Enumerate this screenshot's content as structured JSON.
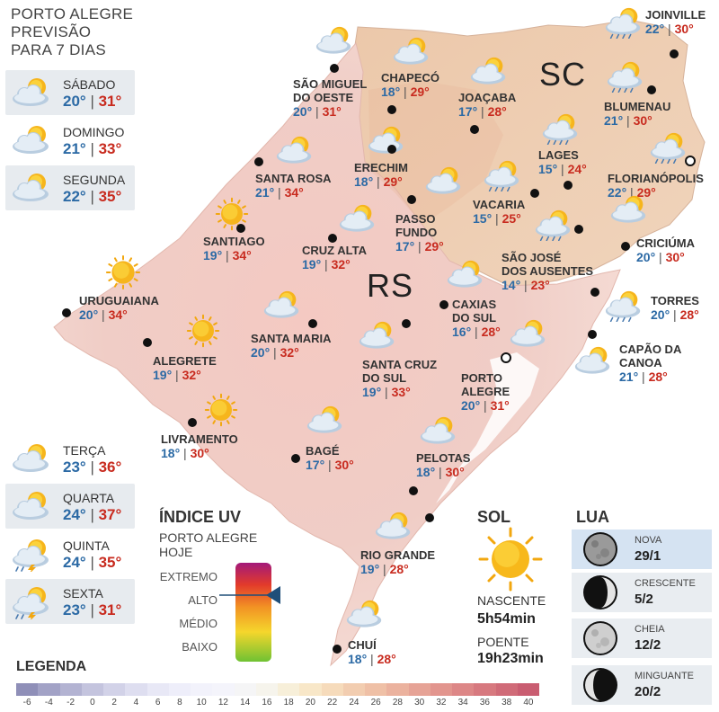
{
  "header": {
    "line1": "PORTO ALEGRE",
    "line2": "PREVISÃO",
    "line3": "PARA 7 DIAS"
  },
  "forecast": [
    {
      "day": "SÁBADO",
      "min": "20°",
      "max": "31°",
      "icon": "partly-cloudy-icon"
    },
    {
      "day": "DOMINGO",
      "min": "21°",
      "max": "33°",
      "icon": "partly-cloudy-icon"
    },
    {
      "day": "SEGUNDA",
      "min": "22°",
      "max": "35°",
      "icon": "partly-cloudy-icon"
    },
    {
      "day": "TERÇA",
      "min": "23°",
      "max": "36°",
      "icon": "partly-cloudy-icon"
    },
    {
      "day": "QUARTA",
      "min": "24°",
      "max": "37°",
      "icon": "partly-cloudy-icon"
    },
    {
      "day": "QUINTA",
      "min": "24°",
      "max": "35°",
      "icon": "storm-icon"
    },
    {
      "day": "SEXTA",
      "min": "23°",
      "max": "31°",
      "icon": "storm-icon"
    }
  ],
  "regions": {
    "sc": "SC",
    "rs": "RS"
  },
  "cities": [
    {
      "id": "joinville",
      "name": [
        "JOINVILLE"
      ],
      "min": "22°",
      "max": "30°",
      "icon": "rain-icon"
    },
    {
      "id": "chapeco",
      "name": [
        "CHAPECÓ"
      ],
      "min": "18°",
      "max": "29°",
      "icon": "partly-cloudy-icon"
    },
    {
      "id": "sao-miguel",
      "name": [
        "SÃO MIGUEL",
        "DO OESTE"
      ],
      "min": "20°",
      "max": "31°",
      "icon": "partly-cloudy-icon"
    },
    {
      "id": "joacaba",
      "name": [
        "JOAÇABA"
      ],
      "min": "17°",
      "max": "28°",
      "icon": "partly-cloudy-icon"
    },
    {
      "id": "blumenau",
      "name": [
        "BLUMENAU"
      ],
      "min": "21°",
      "max": "30°",
      "icon": "rain-icon"
    },
    {
      "id": "lages",
      "name": [
        "LAGES"
      ],
      "min": "15°",
      "max": "24°",
      "icon": "rain-icon"
    },
    {
      "id": "florianopolis",
      "name": [
        "FLORIANÓPOLIS"
      ],
      "min": "22°",
      "max": "29°",
      "icon": "rain-icon"
    },
    {
      "id": "santa-rosa",
      "name": [
        "SANTA ROSA"
      ],
      "min": "21°",
      "max": "34°",
      "icon": "partly-cloudy-icon"
    },
    {
      "id": "erechim",
      "name": [
        "ERECHIM"
      ],
      "min": "18°",
      "max": "29°",
      "icon": "partly-cloudy-icon"
    },
    {
      "id": "vacaria",
      "name": [
        "VACARIA"
      ],
      "min": "15°",
      "max": "25°",
      "icon": "rain-icon"
    },
    {
      "id": "passo-fundo",
      "name": [
        "PASSO",
        "FUNDO"
      ],
      "min": "17°",
      "max": "29°",
      "icon": "partly-cloudy-icon"
    },
    {
      "id": "santiago",
      "name": [
        "SANTIAGO"
      ],
      "min": "19°",
      "max": "34°",
      "icon": "sun-icon"
    },
    {
      "id": "cruz-alta",
      "name": [
        "CRUZ ALTA"
      ],
      "min": "19°",
      "max": "32°",
      "icon": "partly-cloudy-icon"
    },
    {
      "id": "sao-jose",
      "name": [
        "SÃO JOSÉ",
        "DOS AUSENTES"
      ],
      "min": "14°",
      "max": "23°",
      "icon": "rain-icon"
    },
    {
      "id": "criciuma",
      "name": [
        "CRICIÚMA"
      ],
      "min": "20°",
      "max": "30°",
      "icon": "partly-cloudy-icon"
    },
    {
      "id": "uruguaiana",
      "name": [
        "URUGUAIANA"
      ],
      "min": "20°",
      "max": "34°",
      "icon": "sun-icon"
    },
    {
      "id": "caxias",
      "name": [
        "CAXIAS",
        "DO SUL"
      ],
      "min": "16°",
      "max": "28°",
      "icon": "partly-cloudy-icon"
    },
    {
      "id": "torres",
      "name": [
        "TORRES"
      ],
      "min": "20°",
      "max": "28°",
      "icon": "rain-icon"
    },
    {
      "id": "santa-maria",
      "name": [
        "SANTA MARIA"
      ],
      "min": "20°",
      "max": "32°",
      "icon": "partly-cloudy-icon"
    },
    {
      "id": "alegrete",
      "name": [
        "ALEGRETE"
      ],
      "min": "19°",
      "max": "32°",
      "icon": "sun-icon"
    },
    {
      "id": "santa-cruz",
      "name": [
        "SANTA CRUZ",
        "DO SUL"
      ],
      "min": "19°",
      "max": "33°",
      "icon": "partly-cloudy-icon"
    },
    {
      "id": "porto-alegre",
      "name": [
        "PORTO",
        "ALEGRE"
      ],
      "min": "20°",
      "max": "31°",
      "icon": "partly-cloudy-icon"
    },
    {
      "id": "capao",
      "name": [
        "CAPÃO DA",
        "CANOA"
      ],
      "min": "21°",
      "max": "28°",
      "icon": "partly-cloudy-icon"
    },
    {
      "id": "livramento",
      "name": [
        "LIVRAMENTO"
      ],
      "min": "18°",
      "max": "30°",
      "icon": "sun-icon"
    },
    {
      "id": "bage",
      "name": [
        "BAGÉ"
      ],
      "min": "17°",
      "max": "30°",
      "icon": "partly-cloudy-icon"
    },
    {
      "id": "pelotas",
      "name": [
        "PELOTAS"
      ],
      "min": "18°",
      "max": "30°",
      "icon": "partly-cloudy-icon"
    },
    {
      "id": "rio-grande",
      "name": [
        "RIO GRANDE"
      ],
      "min": "19°",
      "max": "28°",
      "icon": "partly-cloudy-icon"
    },
    {
      "id": "chui",
      "name": [
        "CHUÍ"
      ],
      "min": "18°",
      "max": "28°",
      "icon": "partly-cloudy-icon"
    }
  ],
  "uv": {
    "title": "ÍNDICE UV",
    "subtitle1": "PORTO ALEGRE",
    "subtitle2": "HOJE",
    "levels": [
      "EXTREMO",
      "ALTO",
      "MÉDIO",
      "BAIXO"
    ],
    "current": "ALTO"
  },
  "sun": {
    "title": "SOL",
    "sunrise_label": "NASCENTE",
    "sunrise": "5h54min",
    "sunset_label": "POENTE",
    "sunset": "19h23min"
  },
  "moon": {
    "title": "LUA",
    "phases": [
      {
        "name": "NOVA",
        "date": "29/1",
        "icon": "new-moon-icon"
      },
      {
        "name": "CRESCENTE",
        "date": "5/2",
        "icon": "first-quarter-moon-icon"
      },
      {
        "name": "CHEIA",
        "date": "12/2",
        "icon": "full-moon-icon"
      },
      {
        "name": "MINGUANTE",
        "date": "20/2",
        "icon": "last-quarter-moon-icon"
      }
    ]
  },
  "legend": {
    "title": "LEGENDA",
    "ticks": [
      "-6",
      "-4",
      "-2",
      "0",
      "2",
      "4",
      "6",
      "8",
      "10",
      "12",
      "14",
      "16",
      "18",
      "20",
      "22",
      "24",
      "26",
      "28",
      "30",
      "32",
      "34",
      "36",
      "38",
      "40"
    ],
    "colors": [
      "#8f8fb8",
      "#a2a2c6",
      "#b3b3d2",
      "#c4c4de",
      "#d2d2e8",
      "#dedef0",
      "#e8e8f6",
      "#eeeefa",
      "#f2f2fb",
      "#f4f4fb",
      "#f5f5f6",
      "#f6f4ec",
      "#f7efd9",
      "#f8e7c8",
      "#f6dbbb",
      "#f2cdb0",
      "#efc0a6",
      "#ebb29e",
      "#e6a396",
      "#e2958e",
      "#dd8787",
      "#d7797f",
      "#d06b78",
      "#c95d71"
    ]
  }
}
